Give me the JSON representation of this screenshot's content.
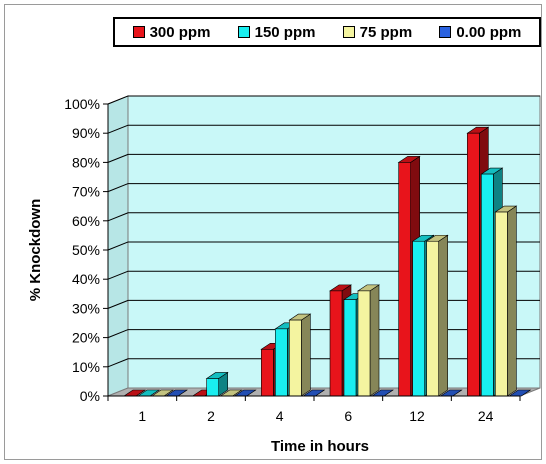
{
  "chart_data": {
    "type": "bar",
    "title": "",
    "xlabel": "Time in hours",
    "ylabel": "% Knockdown",
    "categories": [
      "1",
      "2",
      "4",
      "6",
      "12",
      "24"
    ],
    "ylim": [
      0,
      100
    ],
    "y_ticks": [
      "0%",
      "10%",
      "20%",
      "30%",
      "40%",
      "50%",
      "60%",
      "70%",
      "80%",
      "90%",
      "100%"
    ],
    "grid": true,
    "legend_position": "top",
    "series": [
      {
        "name": "300 ppm",
        "color": "#e8141b",
        "values": [
          0,
          0,
          16,
          36,
          80,
          90
        ]
      },
      {
        "name": "150 ppm",
        "color": "#19eef0",
        "values": [
          0,
          6,
          23,
          33,
          53,
          76
        ]
      },
      {
        "name": "75 ppm",
        "color": "#f4f4a0",
        "values": [
          0,
          0,
          26,
          36,
          53,
          63
        ]
      },
      {
        "name": "0.00 ppm",
        "color": "#2a62e0",
        "values": [
          0,
          0,
          0,
          0,
          0,
          0
        ]
      }
    ],
    "plot_background": "#c9f8f8"
  }
}
